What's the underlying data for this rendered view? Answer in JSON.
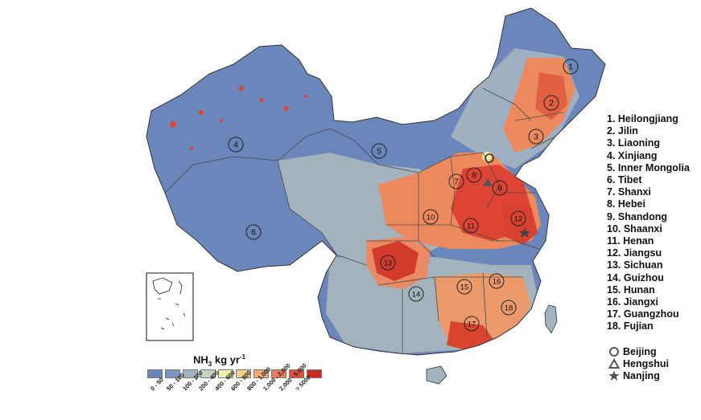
{
  "legend": {
    "title_main": "NH",
    "title_sub": "3",
    "title_unit": " kg yr",
    "title_sup": "-1",
    "classes": [
      {
        "label": "0 - 50",
        "color": "#6b86bb"
      },
      {
        "label": "50 - 100",
        "color": "#7d95bf"
      },
      {
        "label": "100 - 200",
        "color": "#a3b3bd"
      },
      {
        "label": "200 - 400",
        "color": "#c8d2c3"
      },
      {
        "label": "400 - 600",
        "color": "#f2efad"
      },
      {
        "label": "600 - 800",
        "color": "#f5cf8c"
      },
      {
        "label": "800 - 1,000",
        "color": "#f0a878"
      },
      {
        "label": "1,000 - 2,000",
        "color": "#ea7a5a"
      },
      {
        "label": "2,000 - 5,000",
        "color": "#e0503c"
      },
      {
        "label": "> 5000",
        "color": "#cc2a22"
      }
    ]
  },
  "provinces": [
    {
      "num": "1",
      "name": "Heilongjiang"
    },
    {
      "num": "2",
      "name": "Jilin"
    },
    {
      "num": "3",
      "name": "Liaoning"
    },
    {
      "num": "4",
      "name": "Xinjiang"
    },
    {
      "num": "5",
      "name": "Inner Mongolia"
    },
    {
      "num": "6",
      "name": "Tibet"
    },
    {
      "num": "7",
      "name": "Shanxi"
    },
    {
      "num": "8",
      "name": "Hebei"
    },
    {
      "num": "9",
      "name": "Shandong"
    },
    {
      "num": "10",
      "name": "Shaanxi"
    },
    {
      "num": "11",
      "name": "Henan"
    },
    {
      "num": "12",
      "name": "Jiangsu"
    },
    {
      "num": "13",
      "name": "Sichuan"
    },
    {
      "num": "14",
      "name": "Guizhou"
    },
    {
      "num": "15",
      "name": "Hunan"
    },
    {
      "num": "16",
      "name": "Jiangxi"
    },
    {
      "num": "17",
      "name": "Guangzhou"
    },
    {
      "num": "18",
      "name": "Fujian"
    }
  ],
  "cities": [
    {
      "name": "Beijing",
      "symbol": "circle"
    },
    {
      "name": "Hengshui",
      "symbol": "triangle"
    },
    {
      "name": "Nanjing",
      "symbol": "star"
    }
  ],
  "colors": {
    "western_blue": "#6b86bb",
    "grey_blue": "#9fb0c0",
    "orange": "#ec8a5e",
    "red": "#dd4433",
    "dark_red": "#c62a20",
    "border": "#4a4a4a"
  }
}
